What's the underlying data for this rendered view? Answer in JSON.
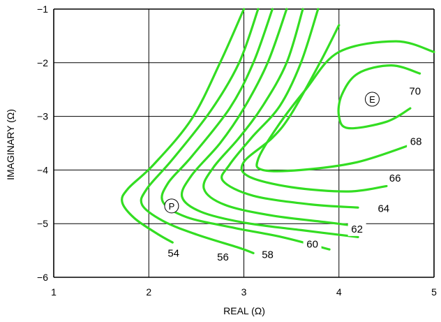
{
  "chart_data": {
    "type": "line",
    "title": "",
    "xlabel": "REAL (Ω)",
    "ylabel": "IMAGINARY (Ω)",
    "xlim": [
      1,
      5
    ],
    "ylim": [
      -6,
      -1
    ],
    "x_ticks": [
      1,
      2,
      3,
      4,
      5
    ],
    "y_ticks": [
      -1,
      -2,
      -3,
      -4,
      -5,
      -6
    ],
    "x_tick_labels": [
      "1",
      "2",
      "3",
      "4",
      "5"
    ],
    "y_tick_labels": [
      "−1",
      "−2",
      "−3",
      "−4",
      "−5",
      "−6"
    ],
    "grid": true,
    "line_color": "#33dd22",
    "series": [
      {
        "name": "54",
        "points": [
          [
            3.0,
            -1.0
          ],
          [
            2.75,
            -2.0
          ],
          [
            2.45,
            -3.05
          ],
          [
            2.05,
            -3.9
          ],
          [
            1.78,
            -4.35
          ],
          [
            1.72,
            -4.6
          ],
          [
            1.85,
            -4.9
          ],
          [
            2.1,
            -5.2
          ],
          [
            2.25,
            -5.35
          ]
        ]
      },
      {
        "name": "56",
        "points": [
          [
            3.15,
            -1.0
          ],
          [
            2.95,
            -2.0
          ],
          [
            2.65,
            -2.9
          ],
          [
            2.25,
            -3.8
          ],
          [
            1.98,
            -4.35
          ],
          [
            1.93,
            -4.65
          ],
          [
            2.15,
            -4.95
          ],
          [
            2.5,
            -5.2
          ],
          [
            2.95,
            -5.45
          ],
          [
            3.1,
            -5.55
          ]
        ]
      },
      {
        "name": "58",
        "points": [
          [
            3.3,
            -1.0
          ],
          [
            3.1,
            -2.0
          ],
          [
            2.85,
            -2.85
          ],
          [
            2.45,
            -3.75
          ],
          [
            2.2,
            -4.25
          ],
          [
            2.15,
            -4.6
          ],
          [
            2.4,
            -4.88
          ],
          [
            2.9,
            -5.08
          ],
          [
            3.4,
            -5.25
          ],
          [
            3.9,
            -5.48
          ]
        ]
      },
      {
        "name": "60",
        "points": [
          [
            3.45,
            -1.0
          ],
          [
            3.25,
            -2.0
          ],
          [
            3.0,
            -2.85
          ],
          [
            2.75,
            -3.5
          ],
          [
            2.45,
            -4.1
          ],
          [
            2.35,
            -4.5
          ],
          [
            2.55,
            -4.78
          ],
          [
            3.0,
            -4.98
          ],
          [
            3.6,
            -5.12
          ],
          [
            4.2,
            -5.25
          ]
        ]
      },
      {
        "name": "62",
        "points": [
          [
            3.62,
            -1.0
          ],
          [
            3.45,
            -2.0
          ],
          [
            3.2,
            -2.8
          ],
          [
            2.95,
            -3.4
          ],
          [
            2.68,
            -3.95
          ],
          [
            2.58,
            -4.35
          ],
          [
            2.8,
            -4.65
          ],
          [
            3.3,
            -4.85
          ],
          [
            3.9,
            -4.98
          ],
          [
            4.2,
            -5.05
          ]
        ]
      },
      {
        "name": "64",
        "points": [
          [
            3.78,
            -1.0
          ],
          [
            3.6,
            -2.0
          ],
          [
            3.38,
            -2.8
          ],
          [
            3.08,
            -3.4
          ],
          [
            2.85,
            -3.9
          ],
          [
            2.78,
            -4.2
          ],
          [
            3.1,
            -4.48
          ],
          [
            3.7,
            -4.64
          ],
          [
            4.2,
            -4.7
          ]
        ]
      },
      {
        "name": "66",
        "points": [
          [
            4.0,
            -1.3
          ],
          [
            3.8,
            -2.0
          ],
          [
            3.5,
            -2.95
          ],
          [
            3.3,
            -3.4
          ],
          [
            3.0,
            -3.85
          ],
          [
            3.05,
            -4.12
          ],
          [
            3.5,
            -4.32
          ],
          [
            4.1,
            -4.4
          ],
          [
            4.5,
            -4.3
          ]
        ]
      },
      {
        "name": "68",
        "points": [
          [
            5.0,
            -1.8
          ],
          [
            4.6,
            -1.6
          ],
          [
            4.0,
            -1.8
          ],
          [
            3.65,
            -2.5
          ],
          [
            3.35,
            -3.2
          ],
          [
            3.15,
            -3.8
          ],
          [
            3.2,
            -4.0
          ],
          [
            3.6,
            -4.0
          ],
          [
            4.2,
            -3.85
          ],
          [
            4.8,
            -3.5
          ]
        ]
      },
      {
        "name": "70",
        "points": [
          [
            4.85,
            -2.2
          ],
          [
            4.55,
            -2.05
          ],
          [
            4.2,
            -2.2
          ],
          [
            4.03,
            -2.6
          ],
          [
            4.0,
            -3.0
          ],
          [
            4.1,
            -3.22
          ],
          [
            4.5,
            -3.1
          ],
          [
            4.75,
            -2.85
          ]
        ]
      }
    ],
    "contour_labels": [
      {
        "text": "54",
        "x": 2.26,
        "y": -5.55
      },
      {
        "text": "56",
        "x": 2.78,
        "y": -5.62
      },
      {
        "text": "58",
        "x": 3.25,
        "y": -5.58
      },
      {
        "text": "60",
        "x": 3.72,
        "y": -5.38
      },
      {
        "text": "62",
        "x": 4.19,
        "y": -5.1
      },
      {
        "text": "64",
        "x": 4.47,
        "y": -4.72
      },
      {
        "text": "66",
        "x": 4.59,
        "y": -4.15
      },
      {
        "text": "68",
        "x": 4.81,
        "y": -3.47
      },
      {
        "text": "70",
        "x": 4.8,
        "y": -2.53
      }
    ],
    "markers": [
      {
        "text": "P",
        "x": 2.24,
        "y": -4.67
      },
      {
        "text": "E",
        "x": 4.35,
        "y": -2.68
      }
    ]
  }
}
